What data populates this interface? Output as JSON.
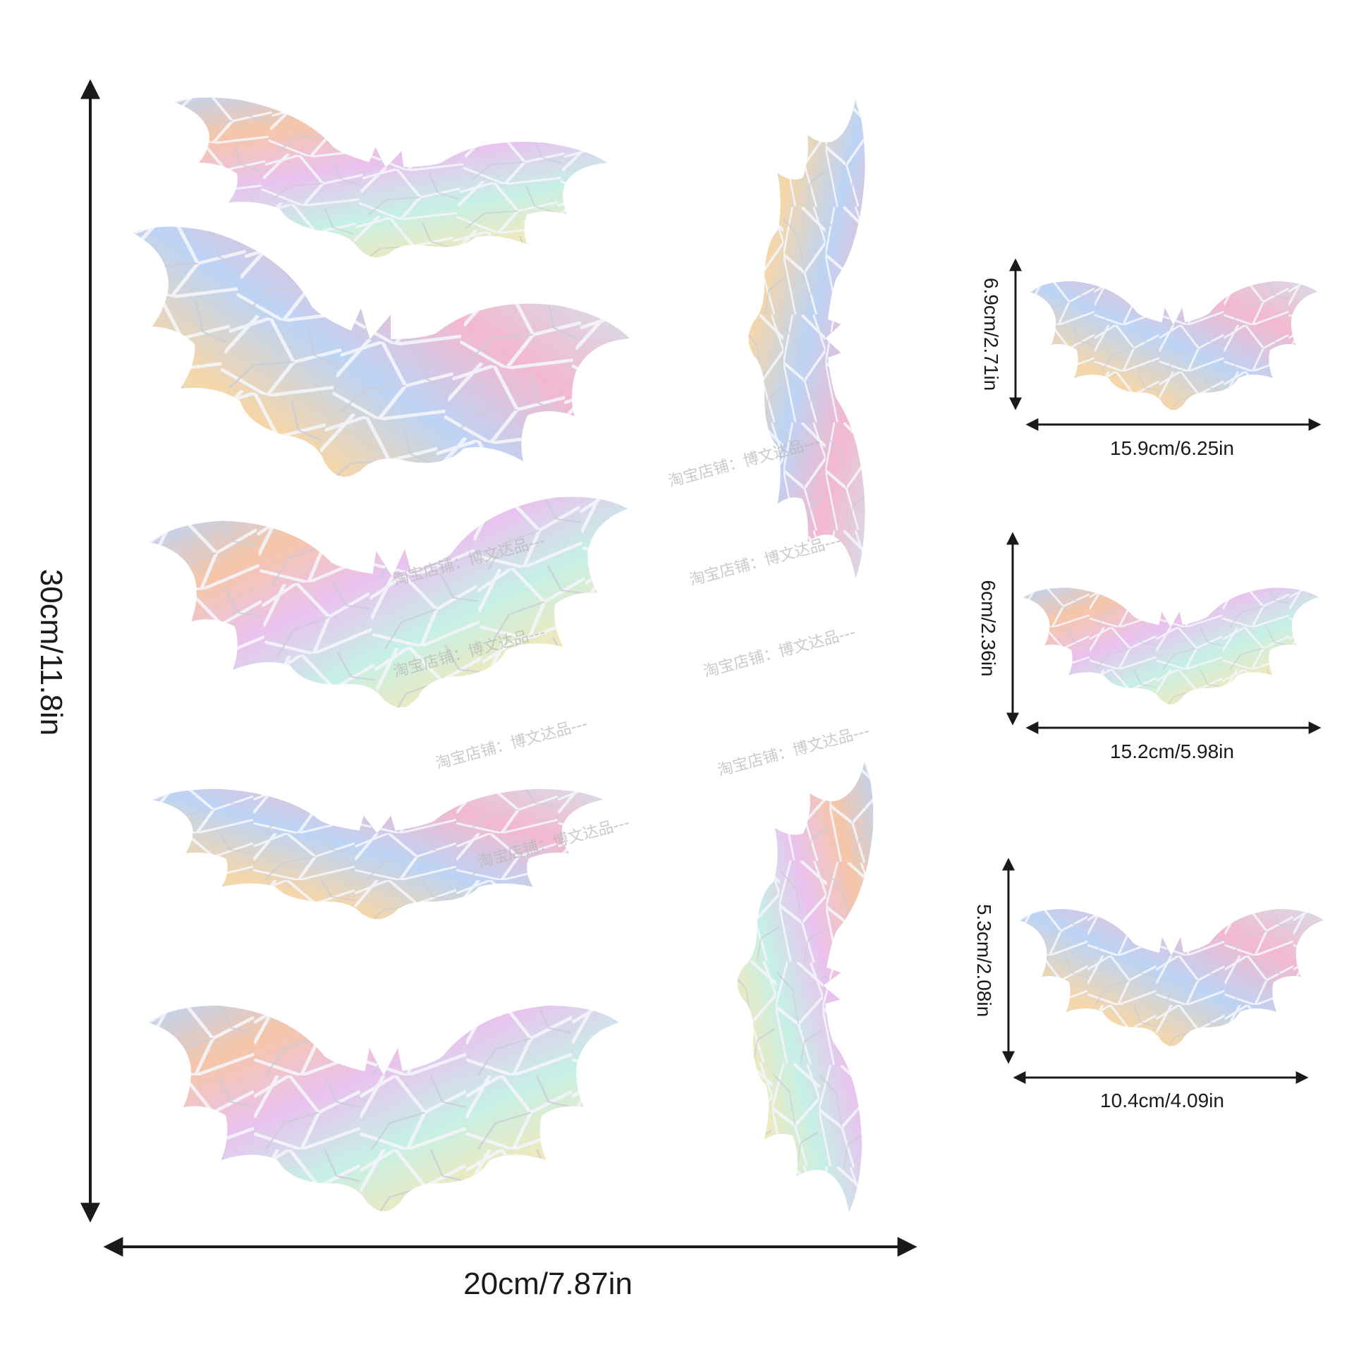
{
  "colors": {
    "arrow": "#1a1a1a",
    "holo": [
      "#bcd4f5",
      "#f6c6a8",
      "#e9c2ef",
      "#c6f0e6",
      "#f4e8b8",
      "#d9dbe6",
      "#a9c5ee",
      "#f3b8cf"
    ],
    "crack": "#eef1f7"
  },
  "main_sheet": {
    "height_label": "30cm/11.8in",
    "width_label": "20cm/7.87in"
  },
  "single_bats": [
    {
      "height_label": "6.9cm/2.71in",
      "width_label": "15.9cm/6.25in"
    },
    {
      "height_label": "6cm/2.36in",
      "width_label": "15.2cm/5.98in"
    },
    {
      "height_label": "5.3cm/2.08in",
      "width_label": "10.4cm/4.09in"
    }
  ],
  "watermark": {
    "text": "淘宝店铺：博文达品---"
  }
}
